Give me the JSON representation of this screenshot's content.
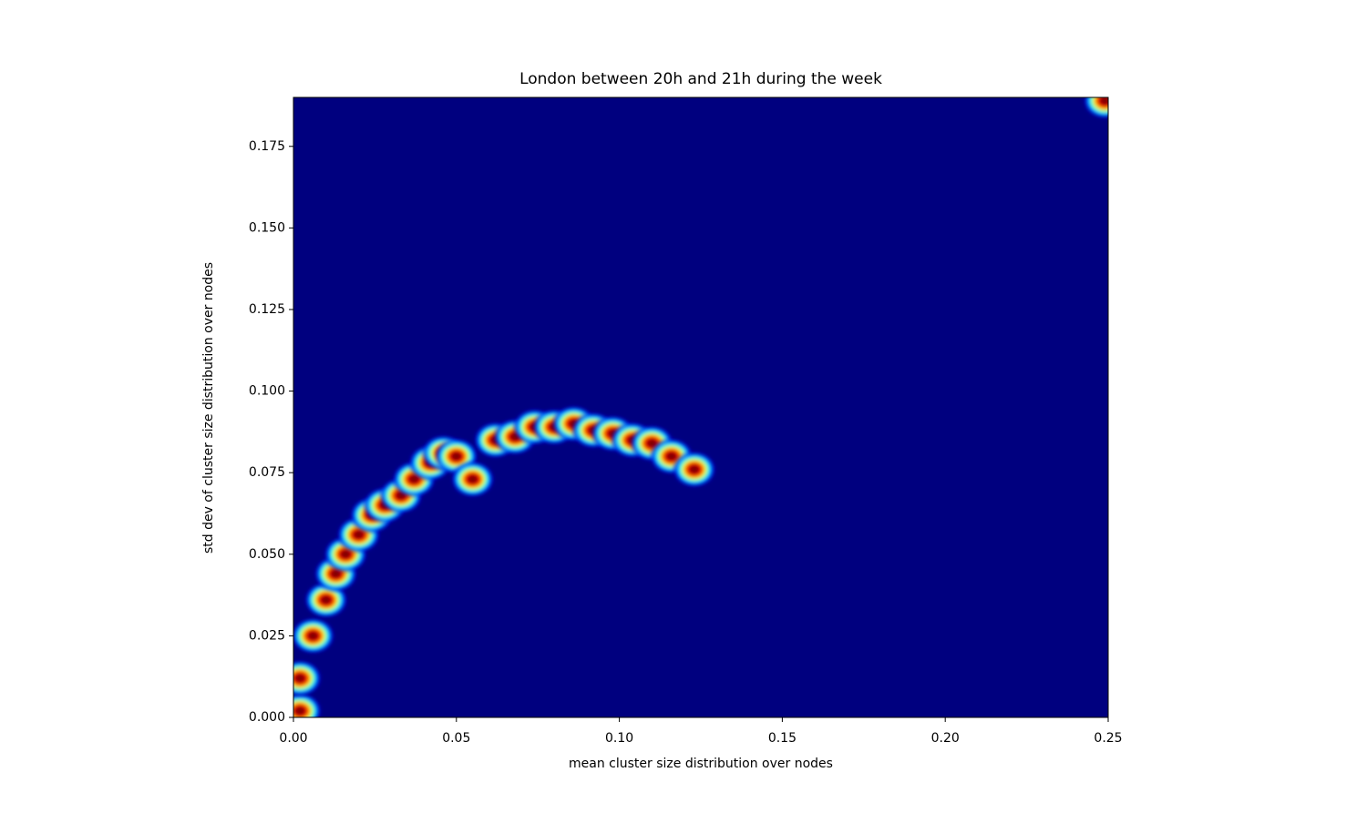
{
  "chart_data": {
    "type": "density",
    "title": "London between 20h and 21h during the week",
    "xlabel": "mean cluster size distribution over nodes",
    "ylabel": "std dev of cluster size distribution over nodes",
    "colormap": "jet",
    "xlim": [
      0,
      0.25
    ],
    "ylim": [
      0,
      0.19
    ],
    "xticks": [
      {
        "value": 0,
        "label": "0.00"
      },
      {
        "value": 0.05,
        "label": "0.05"
      },
      {
        "value": 0.1,
        "label": "0.10"
      },
      {
        "value": 0.15,
        "label": "0.15"
      },
      {
        "value": 0.2,
        "label": "0.20"
      },
      {
        "value": 0.25,
        "label": "0.25"
      }
    ],
    "yticks": [
      {
        "value": 0,
        "label": "0.000"
      },
      {
        "value": 0.025,
        "label": "0.025"
      },
      {
        "value": 0.05,
        "label": "0.050"
      },
      {
        "value": 0.075,
        "label": "0.075"
      },
      {
        "value": 0.1,
        "label": "0.100"
      },
      {
        "value": 0.125,
        "label": "0.125"
      },
      {
        "value": 0.15,
        "label": "0.150"
      },
      {
        "value": 0.175,
        "label": "0.175"
      }
    ],
    "x": [
      0.002,
      0.002,
      0.006,
      0.01,
      0.013,
      0.016,
      0.02,
      0.024,
      0.028,
      0.033,
      0.037,
      0.042,
      0.046,
      0.05,
      0.055,
      0.062,
      0.068,
      0.074,
      0.08,
      0.086,
      0.092,
      0.098,
      0.104,
      0.11,
      0.116,
      0.123,
      0.249
    ],
    "y": [
      0.002,
      0.012,
      0.025,
      0.036,
      0.044,
      0.05,
      0.056,
      0.062,
      0.065,
      0.068,
      0.073,
      0.078,
      0.081,
      0.08,
      0.073,
      0.085,
      0.086,
      0.089,
      0.089,
      0.09,
      0.088,
      0.087,
      0.085,
      0.084,
      0.08,
      0.076,
      0.189
    ]
  }
}
